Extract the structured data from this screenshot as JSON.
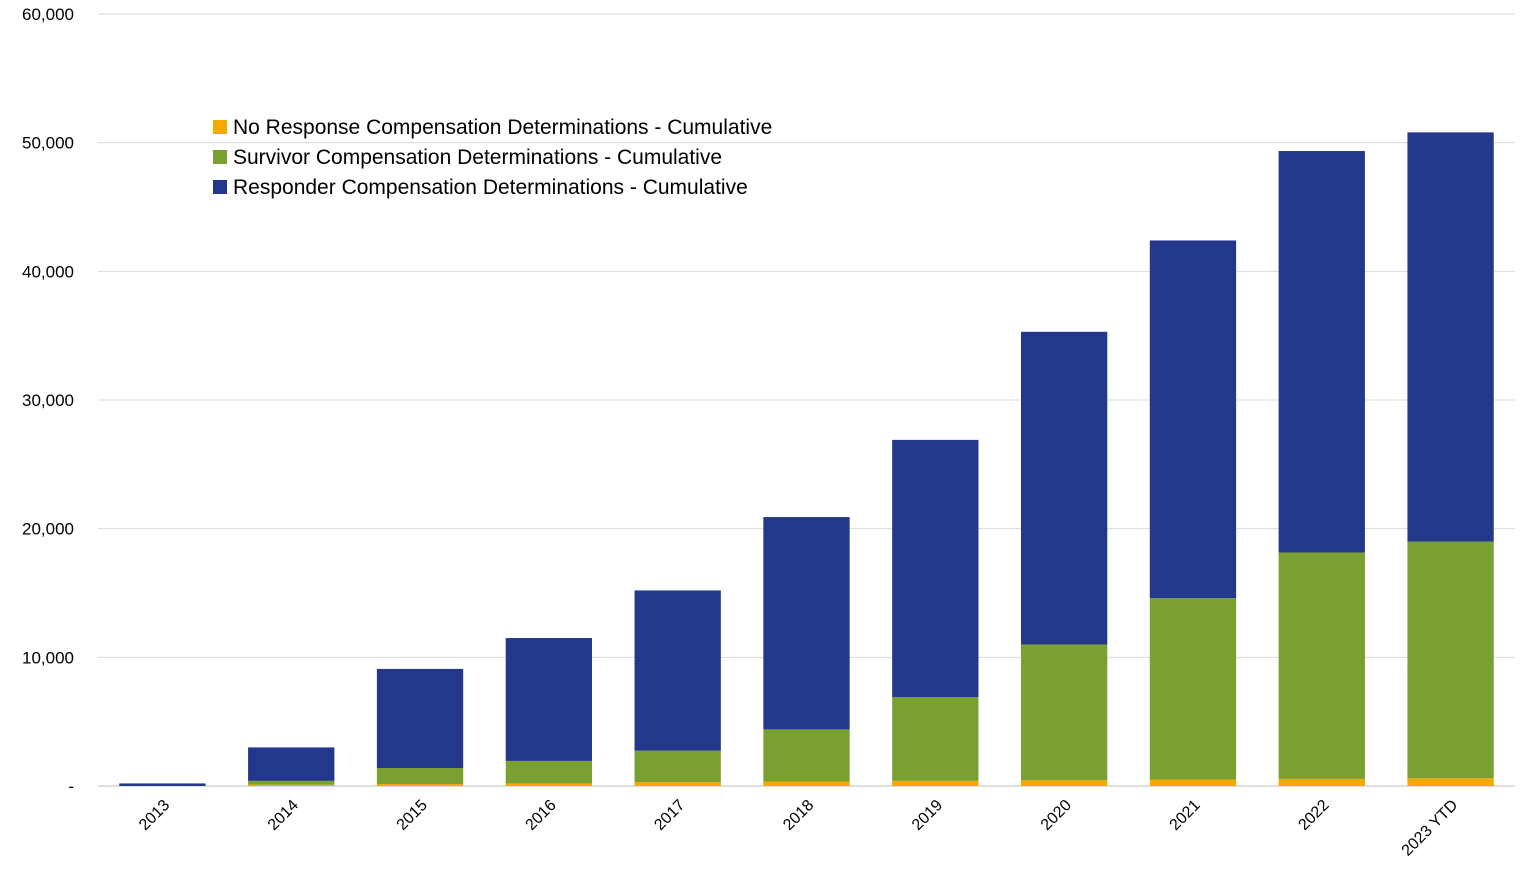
{
  "chart_data": {
    "type": "bar",
    "stacked": true,
    "categories": [
      "2013",
      "2014",
      "2015",
      "2016",
      "2017",
      "2018",
      "2019",
      "2020",
      "2021",
      "2022",
      "2023 YTD"
    ],
    "series": [
      {
        "name": "No Response Compensation Determinations - Cumulative",
        "color": "#f5a800",
        "values": [
          0,
          100,
          150,
          200,
          300,
          350,
          400,
          450,
          500,
          550,
          600
        ]
      },
      {
        "name": "Survivor Compensation Determinations - Cumulative",
        "color": "#7aa032",
        "values": [
          0,
          300,
          1250,
          1750,
          2450,
          4050,
          6500,
          10550,
          14100,
          17600,
          18400
        ]
      },
      {
        "name": "Responder Compensation Determinations - Cumulative",
        "color": "#23388b",
        "values": [
          200,
          2600,
          7700,
          9550,
          12450,
          16500,
          20000,
          24300,
          27800,
          31200,
          31800
        ]
      }
    ],
    "ylim": [
      0,
      60000
    ],
    "yticks": [
      0,
      10000,
      20000,
      30000,
      40000,
      50000,
      60000
    ],
    "ytick_labels": [
      "-",
      "10,000",
      "20,000",
      "30,000",
      "40,000",
      "50,000",
      "60,000"
    ],
    "grid": true,
    "legend_position": "top-left"
  }
}
